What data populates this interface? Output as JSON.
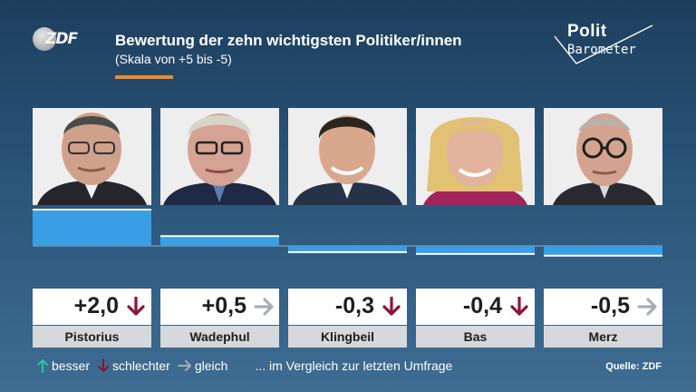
{
  "header": {
    "logo_text": "ZDF",
    "title": "Bewertung der zehn wichtigsten Politiker/innen",
    "subtitle": "(Skala von +5 bis -5)",
    "brand_line1": "Polit",
    "brand_line2": "Barometer"
  },
  "colors": {
    "bar": "#3a9ee4",
    "accent": "#f08a24",
    "arrow_down": "#8e1238",
    "arrow_side": "#a9adb2",
    "arrow_up": "#2fc0a5"
  },
  "chart_data": {
    "type": "bar",
    "categories": [
      "Pistorius",
      "Wadephul",
      "Klingbeil",
      "Bas",
      "Merz"
    ],
    "values": [
      2.0,
      0.5,
      -0.3,
      -0.4,
      -0.5
    ],
    "value_labels": [
      "+2,0",
      "+0,5",
      "-0,3",
      "-0,4",
      "-0,5"
    ],
    "trend": [
      "down",
      "side",
      "down",
      "down",
      "side"
    ],
    "title": "Bewertung der zehn wichtigsten Politiker/innen",
    "subtitle": "(Skala von +5 bis -5)",
    "ylim": [
      -5,
      5
    ],
    "grid": false
  },
  "legend": {
    "better": "besser",
    "worse": "schlechter",
    "same": "gleich",
    "note": "... im Vergleich zur letzten Umfrage"
  },
  "source": "Quelle: ZDF"
}
